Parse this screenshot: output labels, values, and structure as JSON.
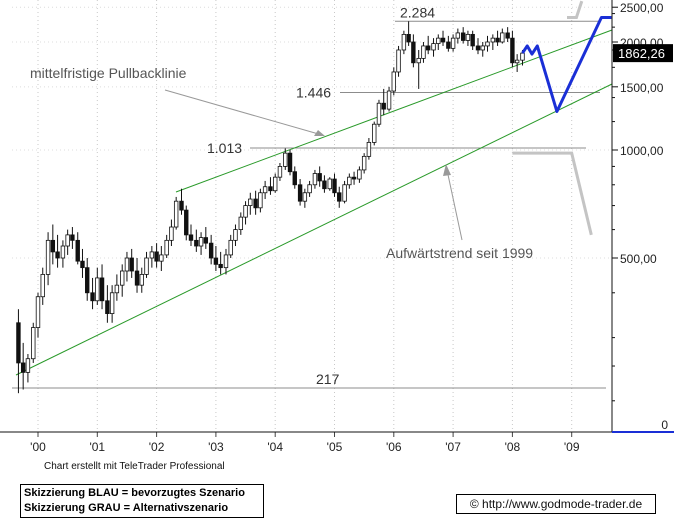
{
  "chart_data": {
    "type": "candlestick",
    "y_scale": "log",
    "x_tick_labels": [
      "'00",
      "'01",
      "'02",
      "'03",
      "'04",
      "'05",
      "'06",
      "'07",
      "'08",
      "'09"
    ],
    "y_tick_labels": [
      "2500,00",
      "2000,00",
      "1500,00",
      "1000,00",
      "500,00",
      "0"
    ],
    "last_price_label": "1862,26",
    "horizontal_levels": [
      {
        "label": "2.284",
        "value": 2284
      },
      {
        "label": "1.446",
        "value": 1446
      },
      {
        "label": "1.013",
        "value": 1013
      },
      {
        "label": "217",
        "value": 217
      }
    ],
    "annotations": {
      "pullback_line": "mittelfristige Pullbacklinie",
      "uptrend_line": "Aufwärtstrend seit 1999"
    },
    "series": [
      {
        "name": "price",
        "color": "#000000",
        "ohlc": [
          {
            "t": 1999.67,
            "o": 330,
            "h": 360,
            "l": 210,
            "c": 255
          },
          {
            "t": 1999.75,
            "o": 255,
            "h": 290,
            "l": 215,
            "c": 240
          },
          {
            "t": 1999.83,
            "o": 240,
            "h": 270,
            "l": 225,
            "c": 262
          },
          {
            "t": 1999.92,
            "o": 262,
            "h": 330,
            "l": 255,
            "c": 320
          },
          {
            "t": 2000.0,
            "o": 320,
            "h": 400,
            "l": 300,
            "c": 390
          },
          {
            "t": 2000.08,
            "o": 390,
            "h": 470,
            "l": 370,
            "c": 450
          },
          {
            "t": 2000.17,
            "o": 450,
            "h": 590,
            "l": 420,
            "c": 560
          },
          {
            "t": 2000.25,
            "o": 560,
            "h": 620,
            "l": 480,
            "c": 520
          },
          {
            "t": 2000.33,
            "o": 520,
            "h": 580,
            "l": 470,
            "c": 500
          },
          {
            "t": 2000.42,
            "o": 500,
            "h": 560,
            "l": 470,
            "c": 540
          },
          {
            "t": 2000.5,
            "o": 540,
            "h": 600,
            "l": 510,
            "c": 580
          },
          {
            "t": 2000.58,
            "o": 580,
            "h": 610,
            "l": 530,
            "c": 560
          },
          {
            "t": 2000.67,
            "o": 560,
            "h": 590,
            "l": 480,
            "c": 490
          },
          {
            "t": 2000.75,
            "o": 490,
            "h": 530,
            "l": 440,
            "c": 470
          },
          {
            "t": 2000.83,
            "o": 470,
            "h": 500,
            "l": 380,
            "c": 400
          },
          {
            "t": 2000.92,
            "o": 400,
            "h": 440,
            "l": 360,
            "c": 380
          },
          {
            "t": 2001.0,
            "o": 380,
            "h": 470,
            "l": 370,
            "c": 440
          },
          {
            "t": 2001.08,
            "o": 440,
            "h": 480,
            "l": 360,
            "c": 380
          },
          {
            "t": 2001.17,
            "o": 380,
            "h": 420,
            "l": 330,
            "c": 350
          },
          {
            "t": 2001.25,
            "o": 350,
            "h": 420,
            "l": 330,
            "c": 400
          },
          {
            "t": 2001.33,
            "o": 400,
            "h": 450,
            "l": 380,
            "c": 420
          },
          {
            "t": 2001.42,
            "o": 420,
            "h": 480,
            "l": 390,
            "c": 460
          },
          {
            "t": 2001.5,
            "o": 460,
            "h": 520,
            "l": 430,
            "c": 500
          },
          {
            "t": 2001.58,
            "o": 500,
            "h": 530,
            "l": 440,
            "c": 460
          },
          {
            "t": 2001.67,
            "o": 460,
            "h": 500,
            "l": 400,
            "c": 420
          },
          {
            "t": 2001.75,
            "o": 420,
            "h": 470,
            "l": 400,
            "c": 450
          },
          {
            "t": 2001.83,
            "o": 450,
            "h": 520,
            "l": 440,
            "c": 500
          },
          {
            "t": 2001.92,
            "o": 500,
            "h": 540,
            "l": 470,
            "c": 520
          },
          {
            "t": 2002.0,
            "o": 520,
            "h": 550,
            "l": 470,
            "c": 490
          },
          {
            "t": 2002.08,
            "o": 490,
            "h": 540,
            "l": 460,
            "c": 510
          },
          {
            "t": 2002.17,
            "o": 510,
            "h": 580,
            "l": 500,
            "c": 560
          },
          {
            "t": 2002.25,
            "o": 560,
            "h": 640,
            "l": 540,
            "c": 610
          },
          {
            "t": 2002.33,
            "o": 610,
            "h": 740,
            "l": 600,
            "c": 720
          },
          {
            "t": 2002.42,
            "o": 720,
            "h": 780,
            "l": 660,
            "c": 680
          },
          {
            "t": 2002.5,
            "o": 680,
            "h": 700,
            "l": 560,
            "c": 580
          },
          {
            "t": 2002.58,
            "o": 580,
            "h": 620,
            "l": 540,
            "c": 560
          },
          {
            "t": 2002.67,
            "o": 560,
            "h": 600,
            "l": 520,
            "c": 540
          },
          {
            "t": 2002.75,
            "o": 540,
            "h": 590,
            "l": 510,
            "c": 570
          },
          {
            "t": 2002.83,
            "o": 570,
            "h": 610,
            "l": 530,
            "c": 550
          },
          {
            "t": 2002.92,
            "o": 550,
            "h": 580,
            "l": 480,
            "c": 500
          },
          {
            "t": 2003.0,
            "o": 500,
            "h": 540,
            "l": 460,
            "c": 480
          },
          {
            "t": 2003.08,
            "o": 480,
            "h": 520,
            "l": 450,
            "c": 470
          },
          {
            "t": 2003.17,
            "o": 470,
            "h": 530,
            "l": 450,
            "c": 510
          },
          {
            "t": 2003.25,
            "o": 510,
            "h": 580,
            "l": 500,
            "c": 560
          },
          {
            "t": 2003.33,
            "o": 560,
            "h": 620,
            "l": 540,
            "c": 600
          },
          {
            "t": 2003.42,
            "o": 600,
            "h": 670,
            "l": 580,
            "c": 650
          },
          {
            "t": 2003.5,
            "o": 650,
            "h": 720,
            "l": 620,
            "c": 700
          },
          {
            "t": 2003.58,
            "o": 700,
            "h": 760,
            "l": 660,
            "c": 730
          },
          {
            "t": 2003.67,
            "o": 730,
            "h": 770,
            "l": 660,
            "c": 690
          },
          {
            "t": 2003.75,
            "o": 690,
            "h": 780,
            "l": 670,
            "c": 760
          },
          {
            "t": 2003.83,
            "o": 760,
            "h": 820,
            "l": 730,
            "c": 790
          },
          {
            "t": 2003.92,
            "o": 790,
            "h": 840,
            "l": 750,
            "c": 770
          },
          {
            "t": 2004.0,
            "o": 770,
            "h": 860,
            "l": 760,
            "c": 840
          },
          {
            "t": 2004.08,
            "o": 840,
            "h": 920,
            "l": 820,
            "c": 900
          },
          {
            "t": 2004.17,
            "o": 900,
            "h": 1010,
            "l": 880,
            "c": 980
          },
          {
            "t": 2004.25,
            "o": 980,
            "h": 1000,
            "l": 850,
            "c": 870
          },
          {
            "t": 2004.33,
            "o": 870,
            "h": 900,
            "l": 780,
            "c": 800
          },
          {
            "t": 2004.42,
            "o": 800,
            "h": 830,
            "l": 700,
            "c": 720
          },
          {
            "t": 2004.5,
            "o": 720,
            "h": 780,
            "l": 690,
            "c": 760
          },
          {
            "t": 2004.58,
            "o": 760,
            "h": 820,
            "l": 740,
            "c": 800
          },
          {
            "t": 2004.67,
            "o": 800,
            "h": 880,
            "l": 780,
            "c": 860
          },
          {
            "t": 2004.75,
            "o": 860,
            "h": 900,
            "l": 790,
            "c": 820
          },
          {
            "t": 2004.83,
            "o": 820,
            "h": 850,
            "l": 760,
            "c": 780
          },
          {
            "t": 2004.92,
            "o": 780,
            "h": 840,
            "l": 770,
            "c": 830
          },
          {
            "t": 2005.0,
            "o": 830,
            "h": 860,
            "l": 740,
            "c": 760
          },
          {
            "t": 2005.08,
            "o": 760,
            "h": 790,
            "l": 690,
            "c": 720
          },
          {
            "t": 2005.17,
            "o": 720,
            "h": 820,
            "l": 710,
            "c": 800
          },
          {
            "t": 2005.25,
            "o": 800,
            "h": 860,
            "l": 780,
            "c": 840
          },
          {
            "t": 2005.33,
            "o": 840,
            "h": 870,
            "l": 800,
            "c": 830
          },
          {
            "t": 2005.42,
            "o": 830,
            "h": 900,
            "l": 810,
            "c": 880
          },
          {
            "t": 2005.5,
            "o": 880,
            "h": 980,
            "l": 860,
            "c": 960
          },
          {
            "t": 2005.58,
            "o": 960,
            "h": 1080,
            "l": 940,
            "c": 1050
          },
          {
            "t": 2005.67,
            "o": 1050,
            "h": 1200,
            "l": 1030,
            "c": 1180
          },
          {
            "t": 2005.75,
            "o": 1180,
            "h": 1380,
            "l": 1160,
            "c": 1350
          },
          {
            "t": 2005.83,
            "o": 1350,
            "h": 1480,
            "l": 1250,
            "c": 1300
          },
          {
            "t": 2005.92,
            "o": 1300,
            "h": 1500,
            "l": 1280,
            "c": 1460
          },
          {
            "t": 2006.0,
            "o": 1460,
            "h": 1700,
            "l": 1420,
            "c": 1650
          },
          {
            "t": 2006.08,
            "o": 1650,
            "h": 1950,
            "l": 1600,
            "c": 1900
          },
          {
            "t": 2006.17,
            "o": 1900,
            "h": 2150,
            "l": 1850,
            "c": 2100
          },
          {
            "t": 2006.25,
            "o": 2100,
            "h": 2284,
            "l": 1950,
            "c": 2000
          },
          {
            "t": 2006.33,
            "o": 2000,
            "h": 2100,
            "l": 1700,
            "c": 1750
          },
          {
            "t": 2006.42,
            "o": 1750,
            "h": 1900,
            "l": 1480,
            "c": 1800
          },
          {
            "t": 2006.5,
            "o": 1800,
            "h": 2000,
            "l": 1750,
            "c": 1950
          },
          {
            "t": 2006.58,
            "o": 1950,
            "h": 2080,
            "l": 1850,
            "c": 1900
          },
          {
            "t": 2006.67,
            "o": 1900,
            "h": 2050,
            "l": 1820,
            "c": 1980
          },
          {
            "t": 2006.75,
            "o": 1980,
            "h": 2100,
            "l": 1900,
            "c": 2050
          },
          {
            "t": 2006.83,
            "o": 2050,
            "h": 2150,
            "l": 1950,
            "c": 2000
          },
          {
            "t": 2006.92,
            "o": 2000,
            "h": 2080,
            "l": 1880,
            "c": 1920
          },
          {
            "t": 2007.0,
            "o": 1920,
            "h": 2100,
            "l": 1880,
            "c": 2050
          },
          {
            "t": 2007.08,
            "o": 2050,
            "h": 2180,
            "l": 1980,
            "c": 2120
          },
          {
            "t": 2007.17,
            "o": 2120,
            "h": 2200,
            "l": 1980,
            "c": 2020
          },
          {
            "t": 2007.25,
            "o": 2020,
            "h": 2150,
            "l": 1950,
            "c": 2100
          },
          {
            "t": 2007.33,
            "o": 2100,
            "h": 2150,
            "l": 1900,
            "c": 1950
          },
          {
            "t": 2007.42,
            "o": 1950,
            "h": 2050,
            "l": 1850,
            "c": 1900
          },
          {
            "t": 2007.5,
            "o": 1900,
            "h": 2000,
            "l": 1820,
            "c": 1950
          },
          {
            "t": 2007.58,
            "o": 1950,
            "h": 2080,
            "l": 1880,
            "c": 2000
          },
          {
            "t": 2007.67,
            "o": 2000,
            "h": 2100,
            "l": 1900,
            "c": 2050
          },
          {
            "t": 2007.75,
            "o": 2050,
            "h": 2150,
            "l": 1950,
            "c": 2000
          },
          {
            "t": 2007.83,
            "o": 2000,
            "h": 2180,
            "l": 1980,
            "c": 2120
          },
          {
            "t": 2007.92,
            "o": 2120,
            "h": 2200,
            "l": 2000,
            "c": 2050
          },
          {
            "t": 2008.0,
            "o": 2050,
            "h": 2150,
            "l": 1700,
            "c": 1750
          },
          {
            "t": 2008.08,
            "o": 1750,
            "h": 1850,
            "l": 1650,
            "c": 1780
          },
          {
            "t": 2008.17,
            "o": 1780,
            "h": 1900,
            "l": 1720,
            "c": 1862
          }
        ]
      }
    ],
    "scenarios": {
      "blue": [
        [
          2008.17,
          1862
        ],
        [
          2008.25,
          1950
        ],
        [
          2008.33,
          1850
        ],
        [
          2008.42,
          1950
        ],
        [
          2008.75,
          1280
        ],
        [
          2009.5,
          2340
        ],
        [
          2009.67,
          2340
        ]
      ],
      "gray": [
        [
          2008.92,
          2340
        ],
        [
          2009.08,
          2340
        ],
        [
          2009.17,
          2600
        ]
      ],
      "gray_lower": [
        [
          2008.0,
          980
        ],
        [
          2009.0,
          980
        ],
        [
          2009.33,
          580
        ]
      ]
    },
    "legend": {
      "line1": "Skizzierung BLAU = bevorzugtes Szenario",
      "line2": "Skizzierung GRAU = Alternativszenario"
    },
    "credit": "Chart erstellt mit TeleTrader Professional",
    "source": "© http://www.godmode-trader.de"
  }
}
